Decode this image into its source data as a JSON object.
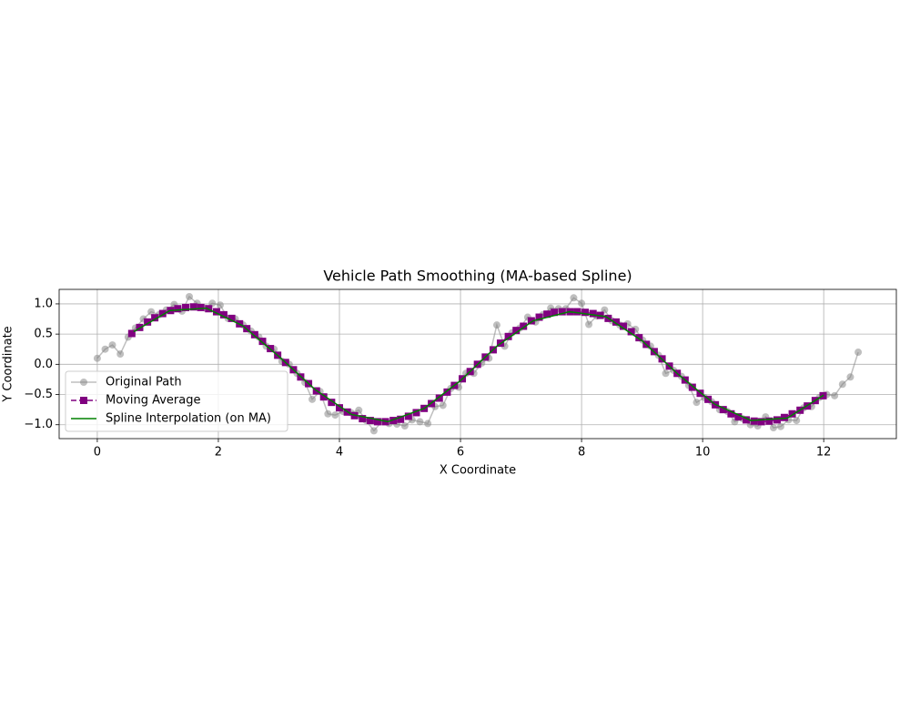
{
  "chart_data": {
    "type": "line",
    "title": "Vehicle Path Smoothing (MA-based Spline)",
    "x_label": "X Coordinate",
    "y_label": "Y Coordinate",
    "xlim": [
      -0.63,
      13.2
    ],
    "ylim": [
      -1.23,
      1.24
    ],
    "xticks": [
      0,
      2,
      4,
      6,
      8,
      10,
      12
    ],
    "yticks": [
      {
        "value": -1,
        "label": "−1.0"
      },
      {
        "value": -0.5,
        "label": "−0.5"
      },
      {
        "value": 0,
        "label": "0.0"
      },
      {
        "value": 0.5,
        "label": "0.5"
      },
      {
        "value": 1,
        "label": "1.0"
      }
    ],
    "grid": true,
    "legend": "lower left",
    "series": [
      {
        "name": "Original Path",
        "color": "#808080",
        "alpha": 0.5,
        "marker": "o",
        "linestyle": "-",
        "x": [
          0.0,
          0.13,
          0.25,
          0.38,
          0.51,
          0.63,
          0.76,
          0.89,
          1.02,
          1.14,
          1.27,
          1.4,
          1.52,
          1.65,
          1.78,
          1.9,
          2.03,
          2.16,
          2.28,
          2.41,
          2.54,
          2.67,
          2.79,
          2.92,
          3.05,
          3.17,
          3.3,
          3.43,
          3.55,
          3.68,
          3.81,
          3.93,
          4.06,
          4.19,
          4.32,
          4.44,
          4.57,
          4.7,
          4.82,
          4.95,
          5.08,
          5.2,
          5.33,
          5.46,
          5.58,
          5.71,
          5.84,
          5.97,
          6.09,
          6.22,
          6.35,
          6.47,
          6.6,
          6.73,
          6.85,
          6.98,
          7.11,
          7.24,
          7.36,
          7.49,
          7.62,
          7.74,
          7.87,
          8.0,
          8.12,
          8.25,
          8.38,
          8.5,
          8.63,
          8.76,
          8.89,
          9.01,
          9.14,
          9.27,
          9.39,
          9.52,
          9.65,
          9.77,
          9.9,
          10.03,
          10.15,
          10.28,
          10.41,
          10.53,
          10.66,
          10.79,
          10.91,
          11.04,
          11.17,
          11.29,
          11.42,
          11.55,
          11.67,
          11.8,
          11.93,
          12.05,
          12.18,
          12.31,
          12.44,
          12.57
        ],
        "values": [
          0.1,
          0.25,
          0.32,
          0.17,
          0.45,
          0.6,
          0.75,
          0.87,
          0.82,
          0.9,
          0.99,
          0.88,
          1.12,
          1.01,
          0.93,
          1.01,
          0.98,
          0.76,
          0.75,
          0.65,
          0.55,
          0.45,
          0.3,
          0.25,
          0.05,
          0.0,
          -0.15,
          -0.3,
          -0.58,
          -0.45,
          -0.82,
          -0.84,
          -0.78,
          -0.8,
          -0.76,
          -0.93,
          -1.1,
          -0.95,
          -0.98,
          -0.99,
          -1.02,
          -0.92,
          -0.95,
          -0.98,
          -0.7,
          -0.68,
          -0.4,
          -0.38,
          -0.15,
          -0.15,
          0.02,
          0.1,
          0.65,
          0.3,
          0.52,
          0.6,
          0.78,
          0.7,
          0.82,
          0.93,
          0.92,
          0.92,
          1.1,
          1.01,
          0.66,
          0.8,
          0.9,
          0.72,
          0.65,
          0.67,
          0.58,
          0.4,
          0.3,
          0.15,
          -0.15,
          -0.1,
          -0.2,
          -0.35,
          -0.63,
          -0.55,
          -0.62,
          -0.75,
          -0.78,
          -0.95,
          -0.9,
          -1.0,
          -1.02,
          -0.87,
          -1.05,
          -1.03,
          -0.92,
          -0.93,
          -0.72,
          -0.7,
          -0.55,
          -0.5,
          -0.52,
          -0.33,
          -0.21,
          0.2
        ]
      },
      {
        "name": "Moving Average",
        "color": "#800080",
        "alpha": 1,
        "marker": "s",
        "linestyle": "--",
        "x": [
          0.57,
          0.7,
          0.83,
          0.95,
          1.08,
          1.21,
          1.33,
          1.46,
          1.59,
          1.71,
          1.84,
          1.97,
          2.09,
          2.22,
          2.35,
          2.47,
          2.6,
          2.73,
          2.86,
          2.98,
          3.11,
          3.24,
          3.36,
          3.49,
          3.62,
          3.74,
          3.87,
          4.0,
          4.13,
          4.25,
          4.38,
          4.51,
          4.63,
          4.76,
          4.89,
          5.01,
          5.14,
          5.27,
          5.4,
          5.52,
          5.65,
          5.78,
          5.9,
          6.03,
          6.16,
          6.28,
          6.41,
          6.54,
          6.66,
          6.79,
          6.92,
          7.04,
          7.17,
          7.3,
          7.43,
          7.55,
          7.68,
          7.81,
          7.93,
          8.06,
          8.19,
          8.31,
          8.44,
          8.57,
          8.69,
          8.82,
          8.95,
          9.07,
          9.2,
          9.33,
          9.45,
          9.58,
          9.71,
          9.83,
          9.96,
          10.09,
          10.21,
          10.34,
          10.47,
          10.59,
          10.72,
          10.85,
          10.97,
          11.1,
          11.23,
          11.35,
          11.48,
          11.61,
          11.73,
          11.86,
          11.99
        ],
        "values": [
          0.51,
          0.61,
          0.7,
          0.77,
          0.84,
          0.89,
          0.92,
          0.94,
          0.95,
          0.94,
          0.92,
          0.87,
          0.82,
          0.76,
          0.67,
          0.59,
          0.49,
          0.38,
          0.26,
          0.15,
          0.03,
          -0.09,
          -0.21,
          -0.32,
          -0.44,
          -0.54,
          -0.63,
          -0.72,
          -0.79,
          -0.85,
          -0.9,
          -0.93,
          -0.95,
          -0.95,
          -0.93,
          -0.91,
          -0.86,
          -0.8,
          -0.73,
          -0.65,
          -0.56,
          -0.46,
          -0.35,
          -0.24,
          -0.12,
          0.0,
          0.12,
          0.24,
          0.35,
          0.46,
          0.56,
          0.63,
          0.72,
          0.78,
          0.83,
          0.86,
          0.87,
          0.87,
          0.87,
          0.86,
          0.84,
          0.81,
          0.76,
          0.7,
          0.63,
          0.54,
          0.44,
          0.33,
          0.21,
          0.09,
          -0.03,
          -0.15,
          -0.26,
          -0.38,
          -0.48,
          -0.58,
          -0.67,
          -0.75,
          -0.82,
          -0.87,
          -0.92,
          -0.94,
          -0.95,
          -0.94,
          -0.92,
          -0.88,
          -0.82,
          -0.76,
          -0.69,
          -0.6,
          -0.52
        ]
      },
      {
        "name": "Spline Interpolation (on MA)",
        "color": "#008000",
        "alpha": 1,
        "marker": "none",
        "linestyle": "-",
        "x": [
          0.6,
          1.2,
          1.8,
          2.4,
          3.0,
          3.6,
          4.2,
          4.8,
          5.4,
          6.0,
          6.6,
          7.2,
          7.8,
          8.4,
          9.0,
          9.6,
          10.2,
          10.8,
          11.4,
          12.0
        ],
        "values": [
          0.54,
          0.89,
          0.93,
          0.64,
          0.13,
          -0.42,
          -0.83,
          -0.95,
          -0.73,
          -0.27,
          0.3,
          0.72,
          0.87,
          0.79,
          0.39,
          -0.17,
          -0.66,
          -0.93,
          -0.89,
          -0.51
        ]
      }
    ]
  }
}
